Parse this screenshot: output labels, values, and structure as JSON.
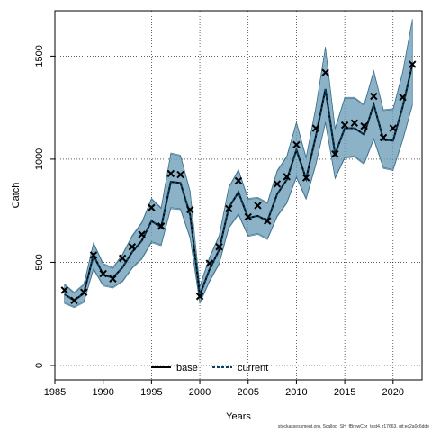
{
  "chart_data": {
    "type": "line",
    "xlabel": "Years",
    "ylabel": "Catch",
    "xlim": [
      1985,
      2023
    ],
    "ylim": [
      -70,
      1720
    ],
    "x_ticks": [
      1985,
      1990,
      1995,
      2000,
      2005,
      2010,
      2015,
      2020
    ],
    "y_ticks": [
      0,
      500,
      1000,
      1500
    ],
    "grid": true,
    "legend_position": "bottom-center",
    "colors": {
      "base": "#000000",
      "current": "#0b3f5e",
      "ribbon": "#6f9fba",
      "ribbon_dark": "#3a6f8a",
      "observed": "#000000"
    },
    "x": [
      1986,
      1987,
      1988,
      1989,
      1990,
      1991,
      1992,
      1993,
      1994,
      1995,
      1996,
      1997,
      1998,
      1999,
      2000,
      2001,
      2002,
      2003,
      2004,
      2005,
      2006,
      2007,
      2008,
      2009,
      2010,
      2011,
      2012,
      2013,
      2014,
      2015,
      2016,
      2017,
      2018,
      2019,
      2020,
      2021,
      2022
    ],
    "observed": [
      365,
      315,
      355,
      535,
      445,
      420,
      520,
      575,
      635,
      765,
      675,
      930,
      925,
      755,
      335,
      495,
      575,
      760,
      895,
      720,
      775,
      700,
      880,
      915,
      1070,
      910,
      1150,
      1420,
      1025,
      1165,
      1175,
      1160,
      1305,
      1105,
      1150,
      1300,
      1460
    ],
    "series": [
      {
        "name": "base",
        "values": [
          345,
          315,
          350,
          535,
          440,
          425,
          475,
          550,
          605,
          700,
          670,
          890,
          885,
          730,
          340,
          465,
          560,
          765,
          840,
          715,
          725,
          700,
          830,
          900,
          1045,
          905,
          1110,
          1340,
          1025,
          1150,
          1150,
          1120,
          1265,
          1095,
          1090,
          1255,
          1460
        ],
        "lower": [
          300,
          280,
          305,
          465,
          385,
          375,
          405,
          470,
          515,
          595,
          580,
          760,
          755,
          615,
          300,
          405,
          490,
          665,
          730,
          625,
          635,
          610,
          720,
          785,
          910,
          805,
          970,
          1175,
          905,
          1005,
          1010,
          975,
          1095,
          955,
          945,
          1090,
          1260
        ],
        "upper": [
          395,
          355,
          395,
          595,
          495,
          475,
          540,
          630,
          695,
          810,
          765,
          1030,
          1020,
          845,
          385,
          525,
          630,
          865,
          950,
          810,
          815,
          790,
          945,
          1015,
          1180,
          1010,
          1250,
          1545,
          1150,
          1300,
          1300,
          1265,
          1430,
          1240,
          1245,
          1425,
          1680
        ]
      },
      {
        "name": "current",
        "values": [
          345,
          315,
          350,
          535,
          440,
          425,
          475,
          550,
          605,
          700,
          670,
          890,
          885,
          730,
          340,
          465,
          560,
          765,
          840,
          715,
          725,
          700,
          830,
          900,
          1045,
          905,
          1110,
          1340,
          1025,
          1150,
          1150,
          1120,
          1265,
          1095,
          1090,
          1255,
          1460
        ],
        "lower": [
          305,
          285,
          310,
          470,
          390,
          380,
          410,
          475,
          520,
          600,
          585,
          765,
          760,
          620,
          305,
          410,
          495,
          670,
          735,
          630,
          640,
          615,
          725,
          790,
          915,
          810,
          975,
          1180,
          910,
          1010,
          1015,
          980,
          1100,
          960,
          950,
          1095,
          1265
        ],
        "upper": [
          390,
          350,
          390,
          590,
          490,
          470,
          535,
          625,
          690,
          805,
          760,
          1025,
          1015,
          840,
          380,
          520,
          625,
          860,
          945,
          805,
          810,
          785,
          940,
          1010,
          1175,
          1005,
          1245,
          1540,
          1145,
          1295,
          1295,
          1260,
          1425,
          1235,
          1240,
          1420,
          1675
        ]
      }
    ]
  },
  "footer": {
    "text": "stockassessment.org, Scallop_SH_fBrewCor_test4, r17663, git:ec2a0c6dde"
  }
}
